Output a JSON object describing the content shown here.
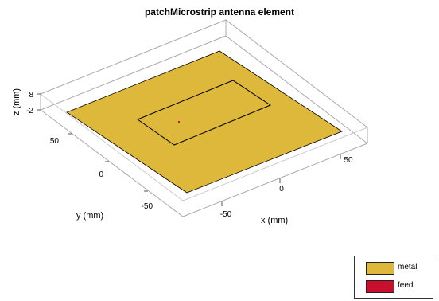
{
  "title": "patchMicrostrip antenna element",
  "axes": {
    "x": {
      "label": "x (mm)",
      "ticks": [
        "-50",
        "0",
        "50"
      ]
    },
    "y": {
      "label": "y (mm)",
      "ticks": [
        "-50",
        "0",
        "50"
      ]
    },
    "z": {
      "label": "z (mm)",
      "ticks": [
        "8",
        "-2"
      ]
    }
  },
  "legend": {
    "items": [
      {
        "label": "metal",
        "color": "#ddb83a"
      },
      {
        "label": "feed",
        "color": "#c8102e"
      }
    ]
  },
  "colors": {
    "ground_plane": "#ddb83a",
    "box_lines": "#aaaaaa",
    "outline": "#000000"
  }
}
